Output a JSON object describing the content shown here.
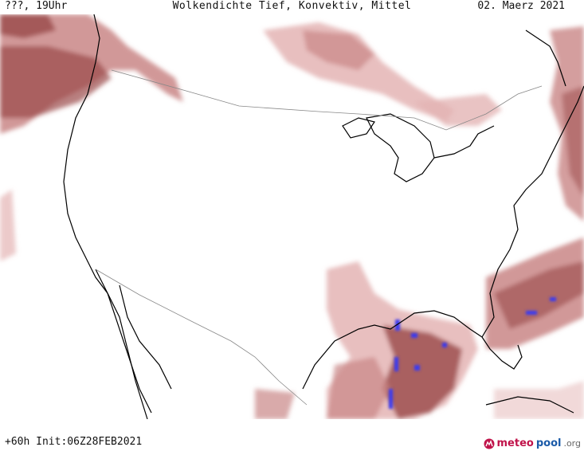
{
  "header": {
    "left": "???, 19Uhr",
    "center": "Wolkendichte  Tief, Konvektiv, Mittel",
    "right": "02. Maerz 2021"
  },
  "footer": {
    "run": "+60h Init:06Z28FEB2021"
  },
  "logo": {
    "part1": "meteo",
    "part2": "pool",
    "part3": ".org"
  },
  "colors": {
    "cloud_light": "#e4b4b4",
    "cloud_mid": "#c98686",
    "cloud_dark": "#9a4848",
    "convective": "#3a3af0",
    "coast": "#000000",
    "border": "#888888"
  }
}
